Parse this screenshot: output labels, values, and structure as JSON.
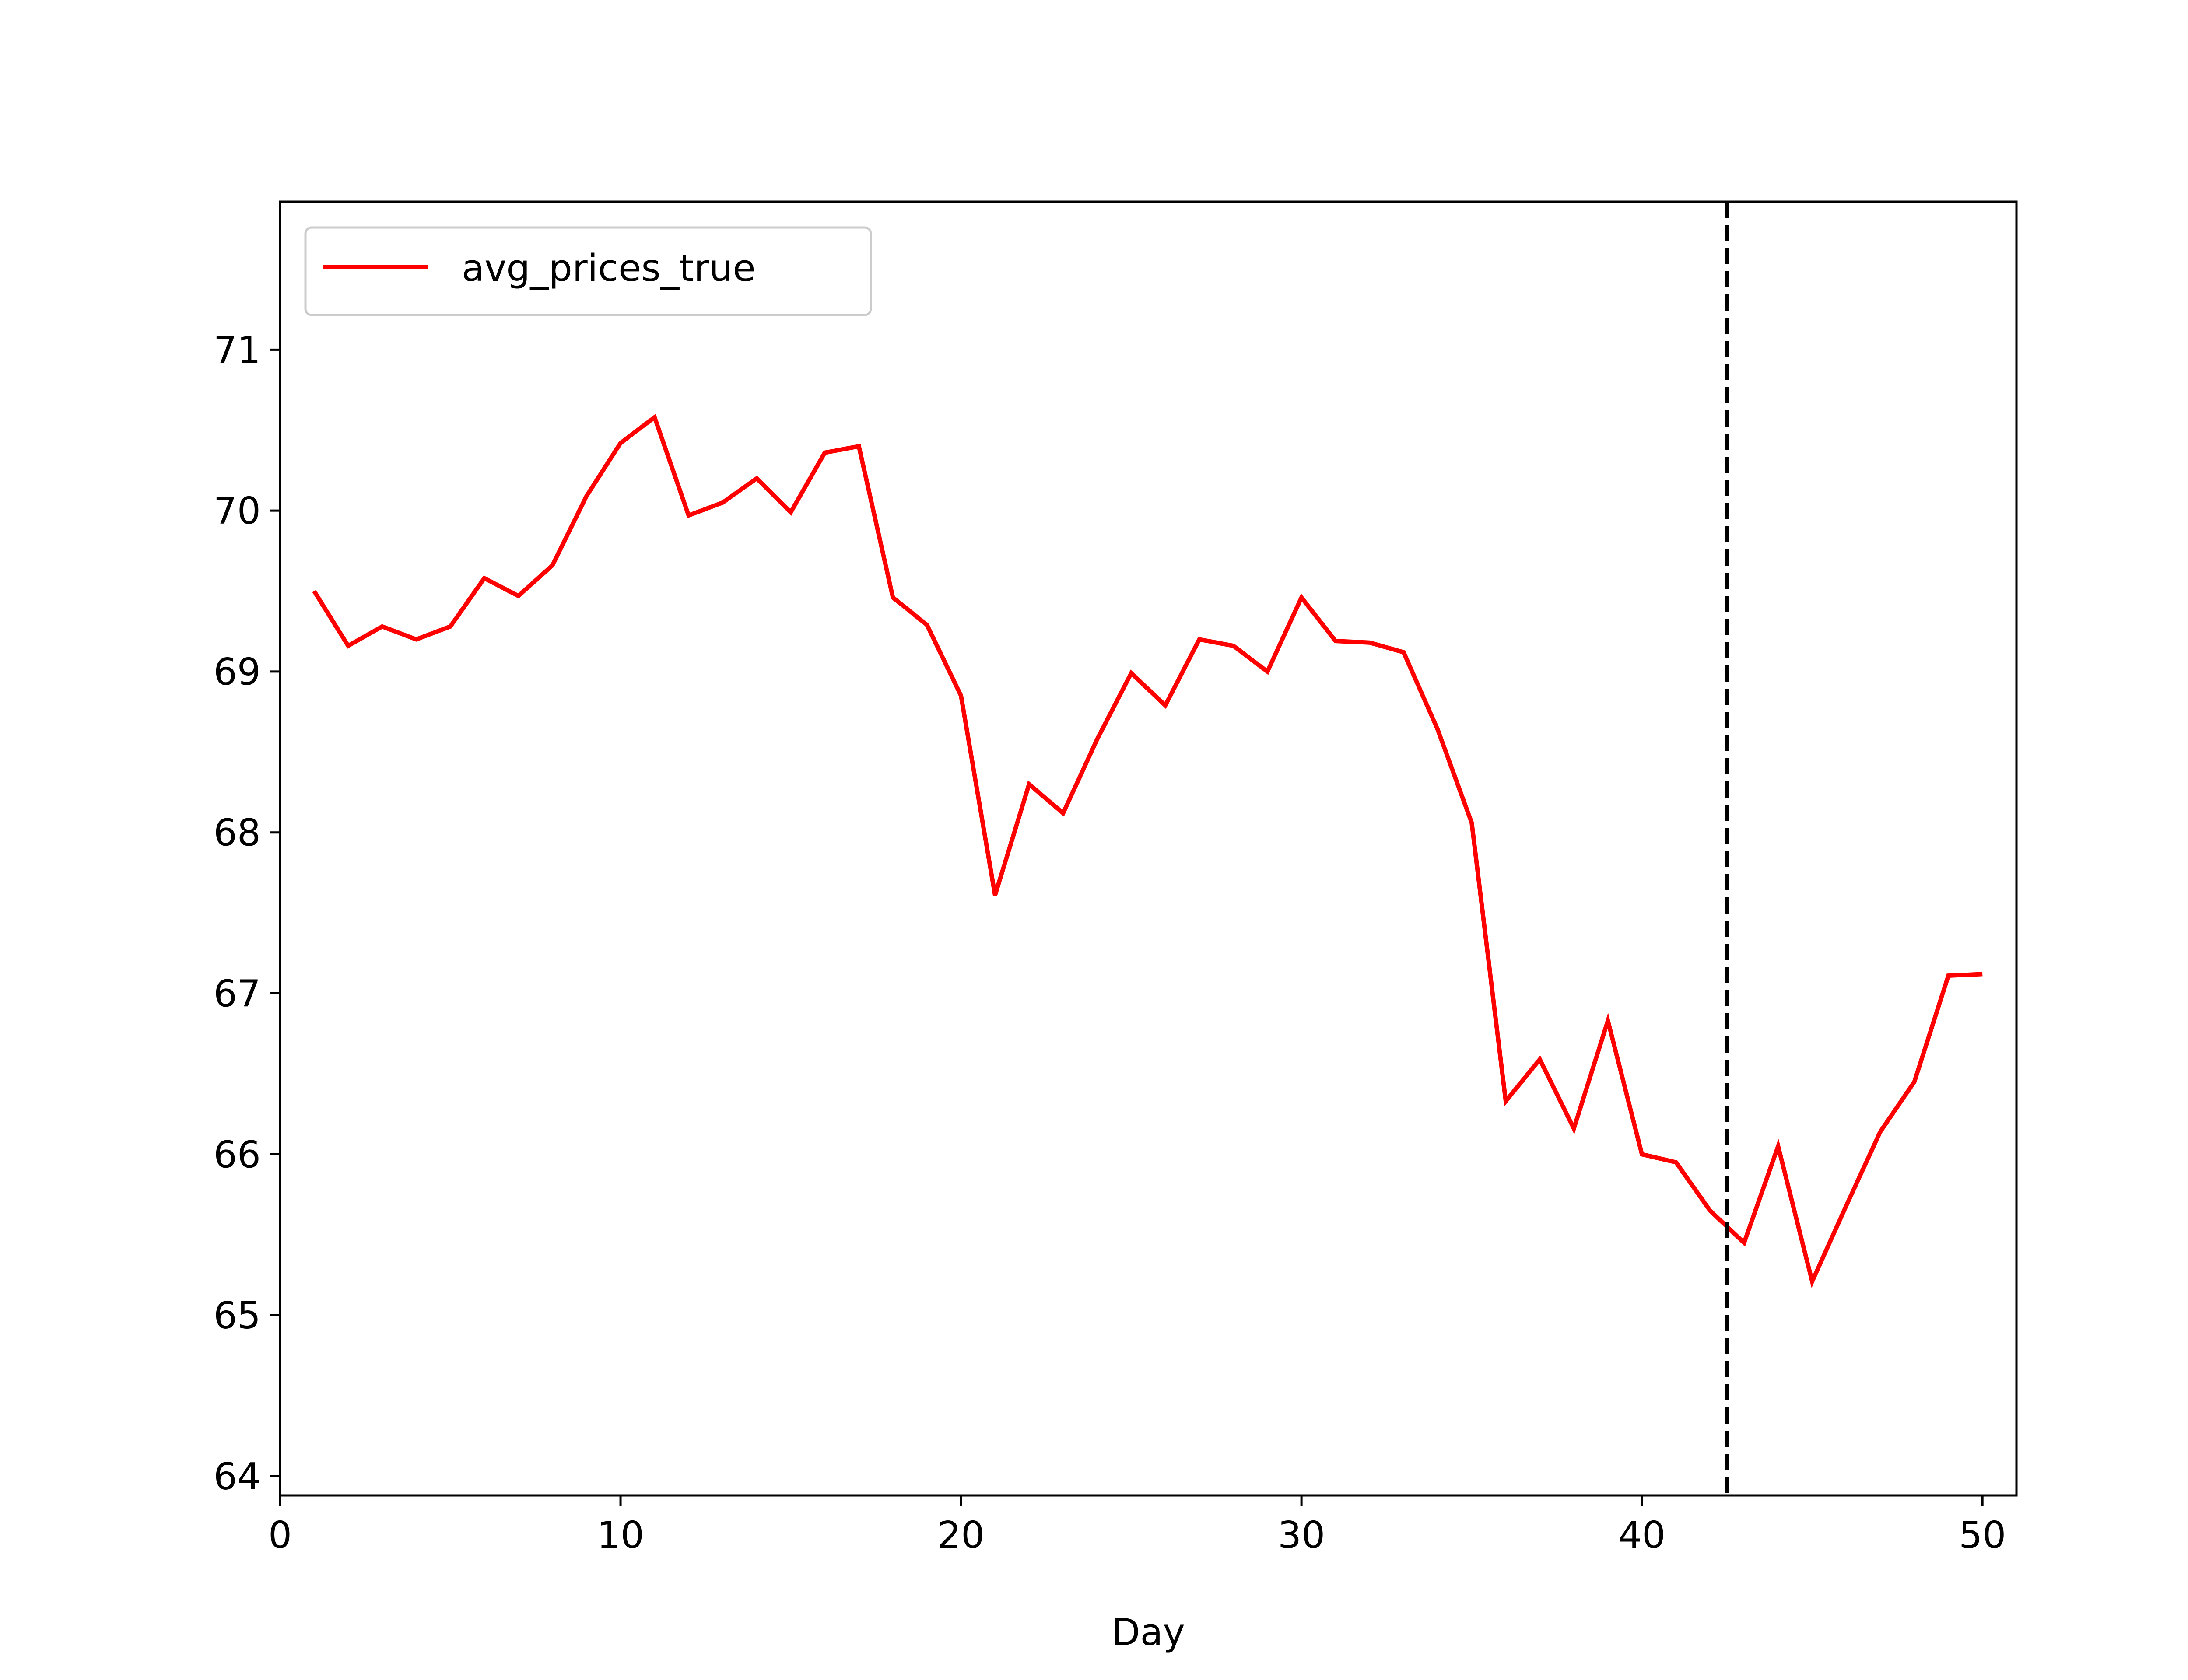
{
  "chart_data": {
    "type": "line",
    "title": "",
    "xlabel": "Day",
    "ylabel": "",
    "xlim": [
      0,
      51
    ],
    "ylim": [
      63.88,
      71.92
    ],
    "xticks": [
      0,
      10,
      20,
      30,
      40,
      50
    ],
    "yticks": [
      64,
      65,
      66,
      67,
      68,
      69,
      70,
      71
    ],
    "grid": false,
    "legend_placement": "upper-left",
    "vline": {
      "x": 42.5,
      "style": "dashed",
      "color": "#000000"
    },
    "series": [
      {
        "name": "avg_prices_true",
        "color": "#ff0000",
        "x": [
          1,
          2,
          3,
          4,
          5,
          6,
          7,
          8,
          9,
          10,
          11,
          12,
          13,
          14,
          15,
          16,
          17,
          18,
          19,
          20,
          21,
          22,
          23,
          24,
          25,
          26,
          27,
          28,
          29,
          30,
          31,
          32,
          33,
          34,
          35,
          36,
          37,
          38,
          39,
          40,
          41,
          42,
          43,
          44,
          45,
          46,
          47,
          48,
          49,
          50
        ],
        "y": [
          69.5,
          69.16,
          69.28,
          69.2,
          69.28,
          69.58,
          69.47,
          69.66,
          70.09,
          70.42,
          70.58,
          69.97,
          70.05,
          70.2,
          69.99,
          70.36,
          70.4,
          69.46,
          69.29,
          68.85,
          67.61,
          68.3,
          68.12,
          68.58,
          68.99,
          68.79,
          69.2,
          69.16,
          69.0,
          69.46,
          69.19,
          69.18,
          69.12,
          68.64,
          68.06,
          66.33,
          66.59,
          66.16,
          66.83,
          66.0,
          65.95,
          65.65,
          65.45,
          66.05,
          65.21,
          65.68,
          66.14,
          66.45,
          67.11,
          67.12
        ]
      }
    ]
  }
}
